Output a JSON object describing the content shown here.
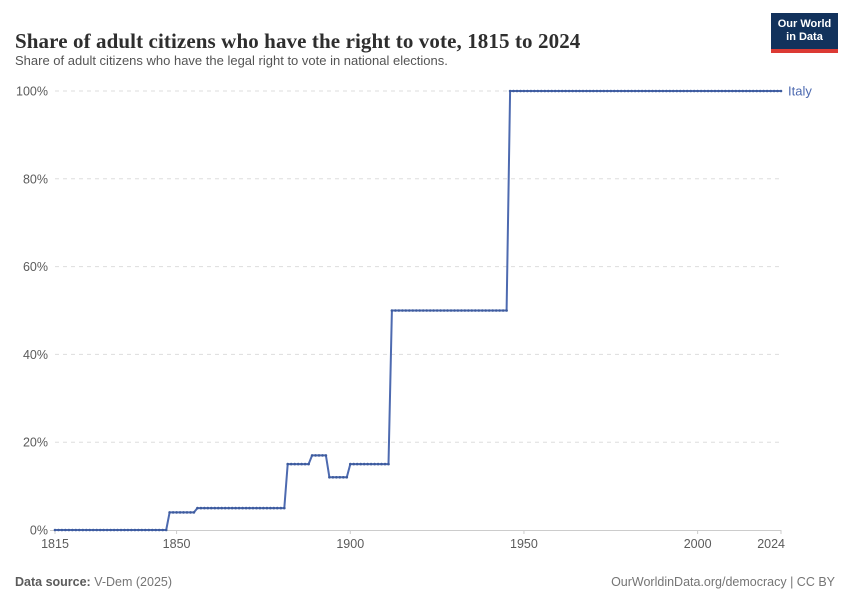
{
  "header": {
    "title": "Share of adult citizens who have the right to vote, 1815 to 2024",
    "subtitle": "Share of adult citizens who have the legal right to vote in national elections.",
    "logo": {
      "line1": "Our World",
      "line2": "in Data",
      "bg_color": "#12325c",
      "accent_color": "#dc3a34"
    }
  },
  "chart_data": {
    "type": "line",
    "title": "Share of adult citizens who have the right to vote, 1815 to 2024",
    "xlabel": "",
    "ylabel": "",
    "xlim": [
      1815,
      2024
    ],
    "ylim": [
      0,
      100
    ],
    "grid": "horizontal-dashed",
    "legend_position": "end-of-line",
    "x_ticks": [
      {
        "v": 1815,
        "label": "1815"
      },
      {
        "v": 1850,
        "label": "1850"
      },
      {
        "v": 1900,
        "label": "1900"
      },
      {
        "v": 1950,
        "label": "1950"
      },
      {
        "v": 2000,
        "label": "2000"
      },
      {
        "v": 2024,
        "label": "2024"
      }
    ],
    "y_ticks": [
      {
        "v": 0,
        "label": "0%"
      },
      {
        "v": 20,
        "label": "20%"
      },
      {
        "v": 40,
        "label": "40%"
      },
      {
        "v": 60,
        "label": "60%"
      },
      {
        "v": 80,
        "label": "80%"
      },
      {
        "v": 100,
        "label": "100%"
      }
    ],
    "series": [
      {
        "name": "Italy",
        "color": "#4d6ab0",
        "marker_color": "#3d5b9d",
        "segments": [
          {
            "start": 1815,
            "end": 1847,
            "value": 0
          },
          {
            "start": 1848,
            "end": 1855,
            "value": 4
          },
          {
            "start": 1856,
            "end": 1881,
            "value": 5
          },
          {
            "start": 1882,
            "end": 1888,
            "value": 15
          },
          {
            "start": 1889,
            "end": 1893,
            "value": 17
          },
          {
            "start": 1894,
            "end": 1899,
            "value": 12
          },
          {
            "start": 1900,
            "end": 1911,
            "value": 15
          },
          {
            "start": 1912,
            "end": 1945,
            "value": 50
          },
          {
            "start": 1946,
            "end": 2024,
            "value": 100
          }
        ]
      }
    ],
    "colors": {
      "grid": "#dddddd",
      "axis": "#cccccc",
      "tick_label": "#5b5b5b"
    }
  },
  "footer": {
    "datasource_label": "Data source:",
    "datasource_value": "V-Dem (2025)",
    "link": "OurWorldinData.org/democracy",
    "separator": " | ",
    "license": "CC BY"
  }
}
